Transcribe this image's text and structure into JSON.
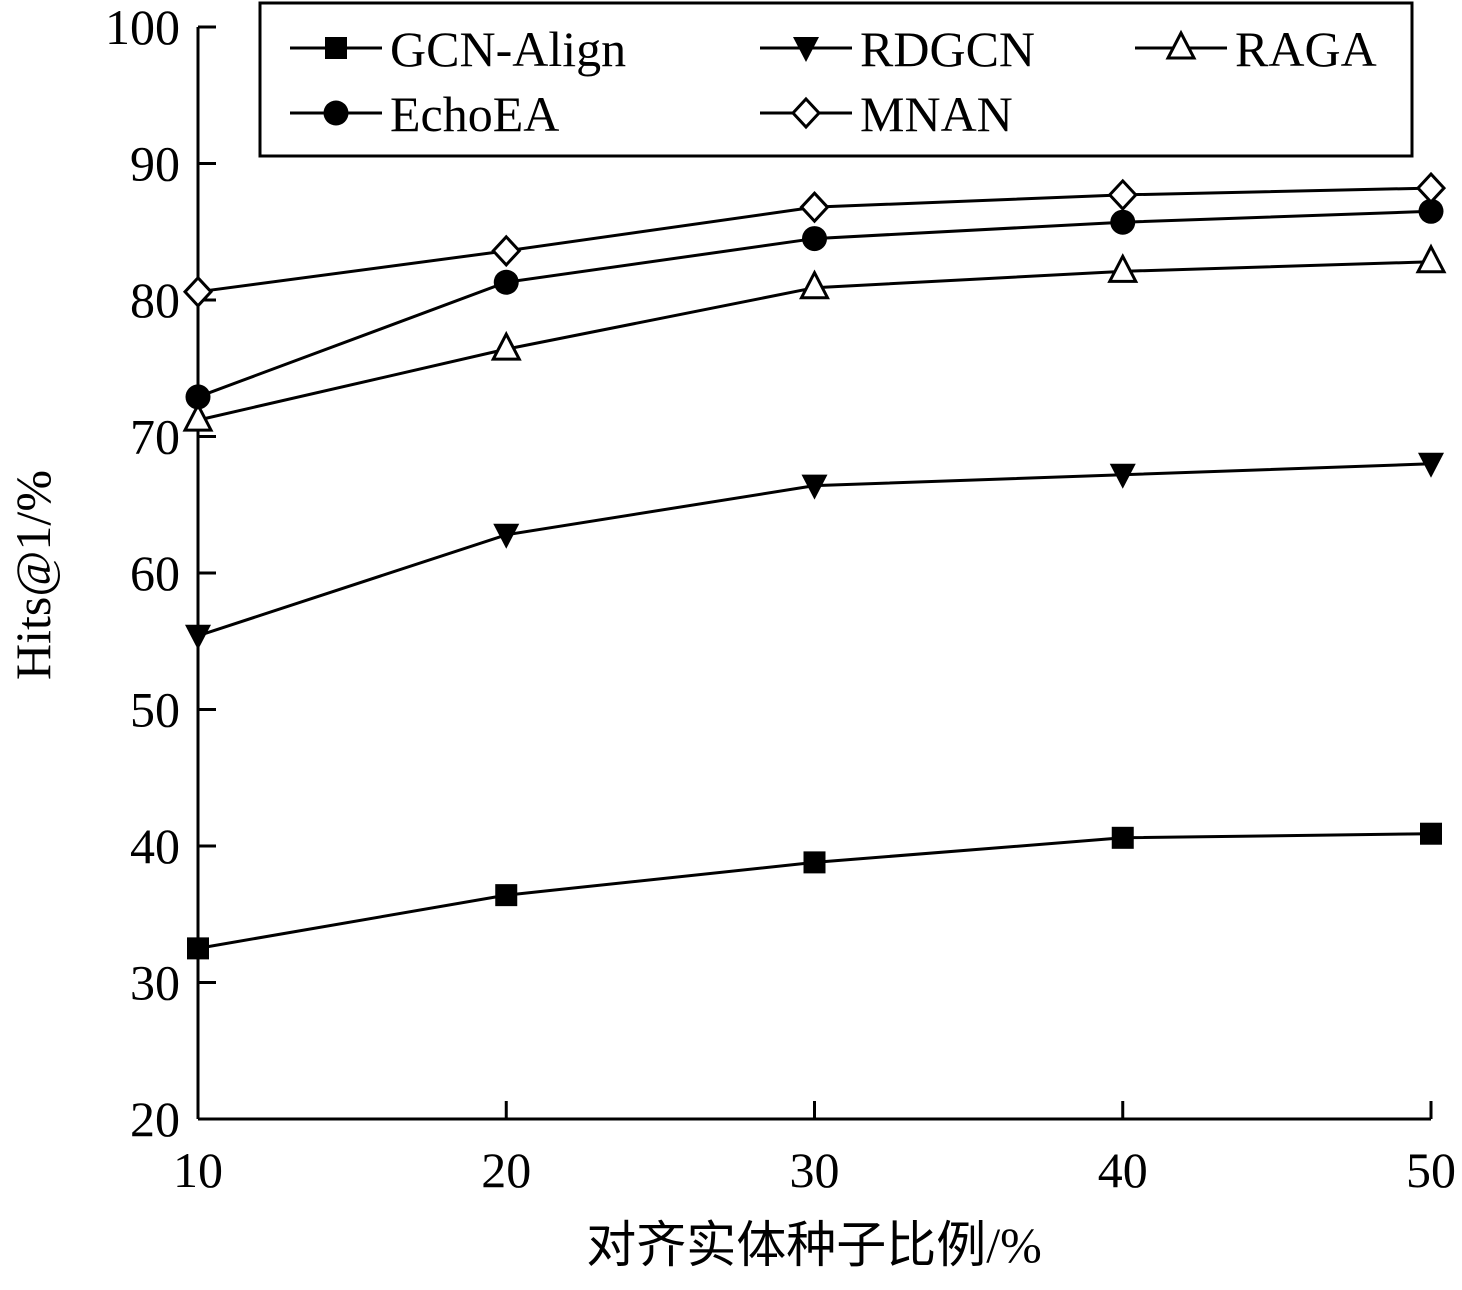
{
  "chart_data": {
    "type": "line",
    "title": "",
    "xlabel": "对齐实体种子比例/%",
    "ylabel": "Hits@1/%",
    "x": [
      10,
      20,
      30,
      40,
      50
    ],
    "xlim": [
      10,
      50
    ],
    "ylim": [
      20,
      100
    ],
    "x_ticks": [
      "10",
      "20",
      "30",
      "40",
      "50"
    ],
    "y_ticks": [
      "20",
      "30",
      "40",
      "50",
      "60",
      "70",
      "80",
      "90",
      "100"
    ],
    "grid": false,
    "legend_position": "top",
    "series": [
      {
        "name": "GCN-Align",
        "marker": "filled-square",
        "values": [
          32.5,
          36.4,
          38.8,
          40.6,
          40.9
        ]
      },
      {
        "name": "RDGCN",
        "marker": "filled-triangle-down",
        "values": [
          55.4,
          62.8,
          66.4,
          67.2,
          68.0
        ]
      },
      {
        "name": "RAGA",
        "marker": "open-triangle-up",
        "values": [
          71.2,
          76.4,
          80.9,
          82.1,
          82.8
        ]
      },
      {
        "name": "EchoEA",
        "marker": "filled-circle",
        "values": [
          72.9,
          81.3,
          84.5,
          85.7,
          86.5
        ]
      },
      {
        "name": "MNAN",
        "marker": "open-diamond",
        "values": [
          80.6,
          83.6,
          86.8,
          87.7,
          88.2
        ]
      }
    ],
    "colors": {
      "line": "#000000",
      "background": "#ffffff"
    }
  }
}
